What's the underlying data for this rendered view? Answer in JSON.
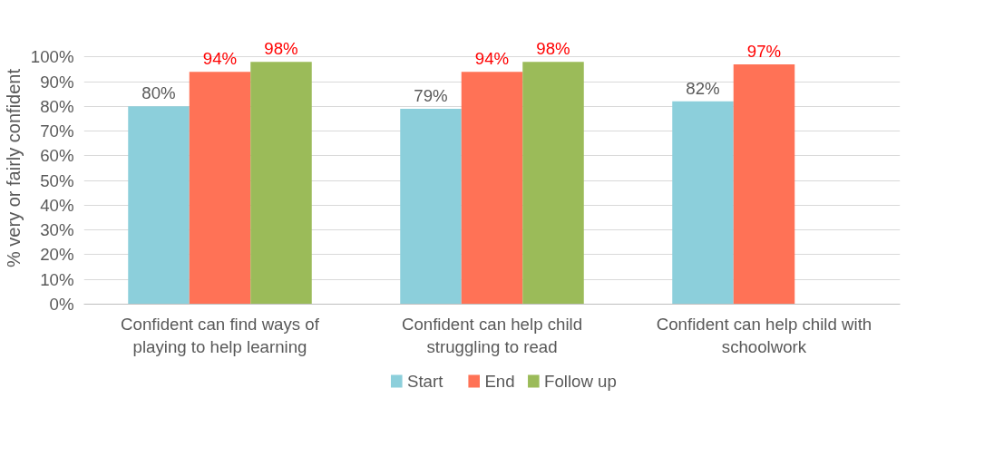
{
  "chart_data": {
    "type": "bar",
    "categories": [
      "Confident can find ways of\nplaying to help learning",
      "Confident can help child\nstruggling to read",
      "Confident can help child with\nschoolwork"
    ],
    "series": [
      {
        "name": "Start",
        "color": "#8ccfdb",
        "values": [
          80,
          79,
          82
        ],
        "value_labels": [
          "80%",
          "79%",
          "82%"
        ]
      },
      {
        "name": "End",
        "color": "#ff7256",
        "values": [
          94,
          94,
          97
        ],
        "value_labels": [
          "94%",
          "94%",
          "97%"
        ]
      },
      {
        "name": "Follow up",
        "color": "#9bbb59",
        "values": [
          98,
          98,
          null
        ],
        "value_labels": [
          "98%",
          "98%",
          null
        ]
      }
    ],
    "ylabel": "% very or fairly confident",
    "ylim": [
      0,
      100
    ],
    "yticks": [
      {
        "value": 0,
        "label": "0%"
      },
      {
        "value": 10,
        "label": "10%"
      },
      {
        "value": 20,
        "label": "20%"
      },
      {
        "value": 30,
        "label": "30%"
      },
      {
        "value": 40,
        "label": "40%"
      },
      {
        "value": 50,
        "label": "50%"
      },
      {
        "value": 60,
        "label": "60%"
      },
      {
        "value": 70,
        "label": "70%"
      },
      {
        "value": 80,
        "label": "80%"
      },
      {
        "value": 90,
        "label": "90%"
      },
      {
        "value": 100,
        "label": "100%"
      }
    ],
    "grid": "y",
    "legend": "bottom"
  }
}
